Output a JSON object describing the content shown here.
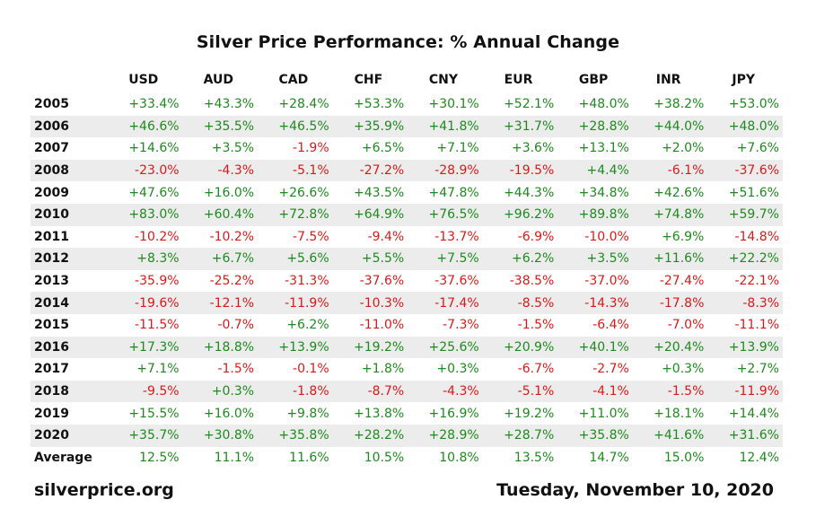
{
  "chart_data": {
    "type": "table",
    "title": "Silver Price Performance: % Annual Change",
    "columns": [
      "USD",
      "AUD",
      "CAD",
      "CHF",
      "CNY",
      "EUR",
      "GBP",
      "INR",
      "JPY"
    ],
    "rows": [
      {
        "label": "2005",
        "values": [
          "+33.4%",
          "+43.3%",
          "+28.4%",
          "+53.3%",
          "+30.1%",
          "+52.1%",
          "+48.0%",
          "+38.2%",
          "+53.0%"
        ]
      },
      {
        "label": "2006",
        "values": [
          "+46.6%",
          "+35.5%",
          "+46.5%",
          "+35.9%",
          "+41.8%",
          "+31.7%",
          "+28.8%",
          "+44.0%",
          "+48.0%"
        ]
      },
      {
        "label": "2007",
        "values": [
          "+14.6%",
          "+3.5%",
          "-1.9%",
          "+6.5%",
          "+7.1%",
          "+3.6%",
          "+13.1%",
          "+2.0%",
          "+7.6%"
        ]
      },
      {
        "label": "2008",
        "values": [
          "-23.0%",
          "-4.3%",
          "-5.1%",
          "-27.2%",
          "-28.9%",
          "-19.5%",
          "+4.4%",
          "-6.1%",
          "-37.6%"
        ]
      },
      {
        "label": "2009",
        "values": [
          "+47.6%",
          "+16.0%",
          "+26.6%",
          "+43.5%",
          "+47.8%",
          "+44.3%",
          "+34.8%",
          "+42.6%",
          "+51.6%"
        ]
      },
      {
        "label": "2010",
        "values": [
          "+83.0%",
          "+60.4%",
          "+72.8%",
          "+64.9%",
          "+76.5%",
          "+96.2%",
          "+89.8%",
          "+74.8%",
          "+59.7%"
        ]
      },
      {
        "label": "2011",
        "values": [
          "-10.2%",
          "-10.2%",
          "-7.5%",
          "-9.4%",
          "-13.7%",
          "-6.9%",
          "-10.0%",
          "+6.9%",
          "-14.8%"
        ]
      },
      {
        "label": "2012",
        "values": [
          "+8.3%",
          "+6.7%",
          "+5.6%",
          "+5.5%",
          "+7.5%",
          "+6.2%",
          "+3.5%",
          "+11.6%",
          "+22.2%"
        ]
      },
      {
        "label": "2013",
        "values": [
          "-35.9%",
          "-25.2%",
          "-31.3%",
          "-37.6%",
          "-37.6%",
          "-38.5%",
          "-37.0%",
          "-27.4%",
          "-22.1%"
        ]
      },
      {
        "label": "2014",
        "values": [
          "-19.6%",
          "-12.1%",
          "-11.9%",
          "-10.3%",
          "-17.4%",
          "-8.5%",
          "-14.3%",
          "-17.8%",
          "-8.3%"
        ]
      },
      {
        "label": "2015",
        "values": [
          "-11.5%",
          "-0.7%",
          "+6.2%",
          "-11.0%",
          "-7.3%",
          "-1.5%",
          "-6.4%",
          "-7.0%",
          "-11.1%"
        ]
      },
      {
        "label": "2016",
        "values": [
          "+17.3%",
          "+18.8%",
          "+13.9%",
          "+19.2%",
          "+25.6%",
          "+20.9%",
          "+40.1%",
          "+20.4%",
          "+13.9%"
        ]
      },
      {
        "label": "2017",
        "values": [
          "+7.1%",
          "-1.5%",
          "-0.1%",
          "+1.8%",
          "+0.3%",
          "-6.7%",
          "-2.7%",
          "+0.3%",
          "+2.7%"
        ]
      },
      {
        "label": "2018",
        "values": [
          "-9.5%",
          "+0.3%",
          "-1.8%",
          "-8.7%",
          "-4.3%",
          "-5.1%",
          "-4.1%",
          "-1.5%",
          "-11.9%"
        ]
      },
      {
        "label": "2019",
        "values": [
          "+15.5%",
          "+16.0%",
          "+9.8%",
          "+13.8%",
          "+16.9%",
          "+19.2%",
          "+11.0%",
          "+18.1%",
          "+14.4%"
        ]
      },
      {
        "label": "2020",
        "values": [
          "+35.7%",
          "+30.8%",
          "+35.8%",
          "+28.2%",
          "+28.9%",
          "+28.7%",
          "+35.8%",
          "+41.6%",
          "+31.6%"
        ]
      }
    ],
    "average": {
      "label": "Average",
      "values": [
        "12.5%",
        "11.1%",
        "11.6%",
        "10.5%",
        "10.8%",
        "13.5%",
        "14.7%",
        "15.0%",
        "12.4%"
      ]
    }
  },
  "footer": {
    "source": "silverprice.org",
    "date": "Tuesday, November 10, 2020"
  },
  "colors": {
    "positive": "#1e8a1e",
    "negative": "#d91a1a",
    "row_shade": "#ececec"
  }
}
